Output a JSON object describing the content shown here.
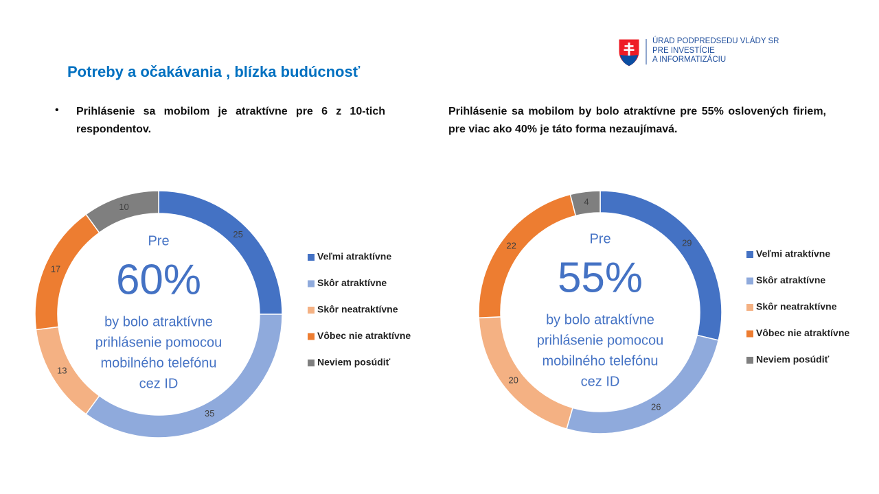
{
  "header": {
    "title": "Potreby a očakávania , blízka budúcnosť",
    "logo_text": [
      "ÚRAD PODPREDSEDU VLÁDY SR",
      "PRE INVESTÍCIE",
      "A INFORMATIZÁCIU"
    ]
  },
  "texts": {
    "left": "Prihlásenie sa mobilom je atraktívne pre 6 z 10-tich respondentov.",
    "right": "Prihlásenie sa mobilom by bolo atraktívne pre 55% oslovených firiem, pre viac ako 40% je táto forma nezaujímavá."
  },
  "chart_data": [
    {
      "type": "donut",
      "categories": [
        "Veľmi atraktívne",
        "Skôr atraktívne",
        "Skôr neatraktívne",
        "Vôbec nie atraktívne",
        "Neviem posúdiť"
      ],
      "values": [
        25,
        35,
        13,
        17,
        10
      ],
      "colors": [
        "#4472c4",
        "#8faadc",
        "#f4b183",
        "#ed7d31",
        "#7f7f7f"
      ],
      "annotations": [
        "Pre",
        "60%",
        "by bolo atraktívne",
        "prihlásenie pomocou",
        "mobilného telefónu",
        "cez ID"
      ]
    },
    {
      "type": "donut",
      "categories": [
        "Veľmi atraktívne",
        "Skôr atraktívne",
        "Skôr neatraktívne",
        "Vôbec nie atraktívne",
        "Neviem posúdiť"
      ],
      "values": [
        29,
        26,
        20,
        22,
        4
      ],
      "colors": [
        "#4472c4",
        "#8faadc",
        "#f4b183",
        "#ed7d31",
        "#7f7f7f"
      ],
      "annotations": [
        "Pre",
        "55%",
        "by bolo atraktívne",
        "prihlásenie pomocou",
        "mobilného telefónu",
        "cez ID"
      ]
    }
  ]
}
